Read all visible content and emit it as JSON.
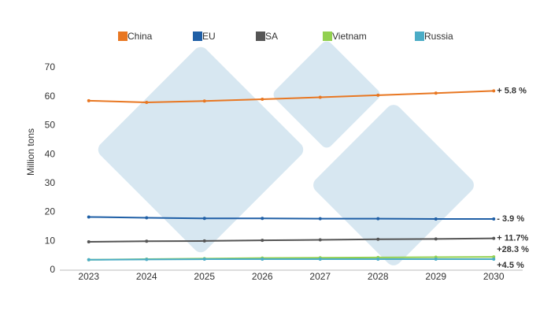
{
  "chart_data": {
    "type": "line",
    "y_label": "Million tons",
    "categories": [
      "2023",
      "2024",
      "2025",
      "2026",
      "2027",
      "2028",
      "2029",
      "2030"
    ],
    "series": [
      {
        "name": "China",
        "color": "#e87722",
        "values": [
          58.6,
          58.0,
          58.5,
          59.1,
          59.8,
          60.5,
          61.2,
          62.0
        ],
        "end_label": "+ 5.8 %"
      },
      {
        "name": "EU",
        "color": "#1f5fa6",
        "values": [
          18.4,
          18.1,
          17.9,
          17.9,
          17.8,
          17.8,
          17.7,
          17.7
        ],
        "end_label": "- 3.9 %"
      },
      {
        "name": "SA",
        "color": "#555555",
        "values": [
          9.8,
          10.0,
          10.1,
          10.3,
          10.5,
          10.7,
          10.8,
          11.0
        ],
        "end_label": "+ 11.7%"
      },
      {
        "name": "Vietnam",
        "color": "#92d050",
        "values": [
          3.6,
          3.8,
          4.0,
          4.2,
          4.3,
          4.4,
          4.5,
          4.6
        ],
        "end_label": "+28.3 %"
      },
      {
        "name": "Russia",
        "color": "#4bacc6",
        "values": [
          3.6,
          3.7,
          3.8,
          3.8,
          3.8,
          3.8,
          3.8,
          3.8
        ],
        "end_label": "+4.5 %"
      }
    ],
    "ylim": [
      0,
      70
    ],
    "yticks": [
      0,
      10,
      20,
      30,
      40,
      50,
      60,
      70
    ],
    "grid": false
  }
}
